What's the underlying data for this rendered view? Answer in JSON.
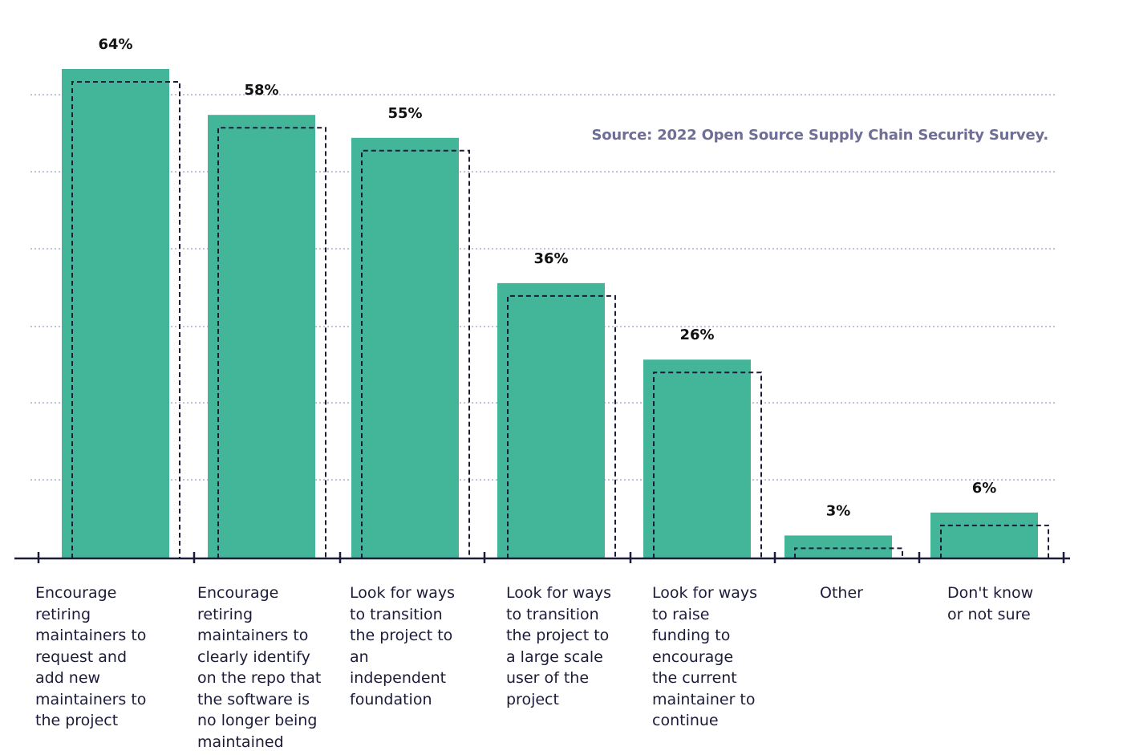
{
  "chart_data": {
    "type": "bar",
    "title": "",
    "xlabel": "",
    "ylabel": "",
    "ylim": [
      0,
      70
    ],
    "grid": true,
    "source": "Source: 2022 Open Source Supply Chain Security Survey.",
    "categories": [
      "Encourage\nretiring\nmaintainers to\nrequest and\nadd new\nmaintainers to\nthe project",
      "Encourage\nretiring\nmaintainers to\nclearly identify\non the repo that\nthe software is\nno longer being\nmaintained",
      "Look for ways\nto transition\nthe project to\nan\nindependent\nfoundation",
      "Look for ways\nto transition\nthe project to\na large scale\nuser of the\nproject",
      "Look for ways\nto raise\nfunding to\nencourage\nthe current\nmaintainer to\ncontinue",
      "Other",
      "Don't know\nor not sure"
    ],
    "values": [
      64,
      58,
      55,
      36,
      26,
      3,
      6
    ],
    "value_labels": [
      "64%",
      "58%",
      "55%",
      "36%",
      "26%",
      "3%",
      "6%"
    ],
    "colors": {
      "bar": "#43b69a",
      "outline": "#1c1c3a",
      "grid": "#9c9cc0",
      "axis": "#1c1c3a",
      "source": "#6e6e96"
    }
  }
}
